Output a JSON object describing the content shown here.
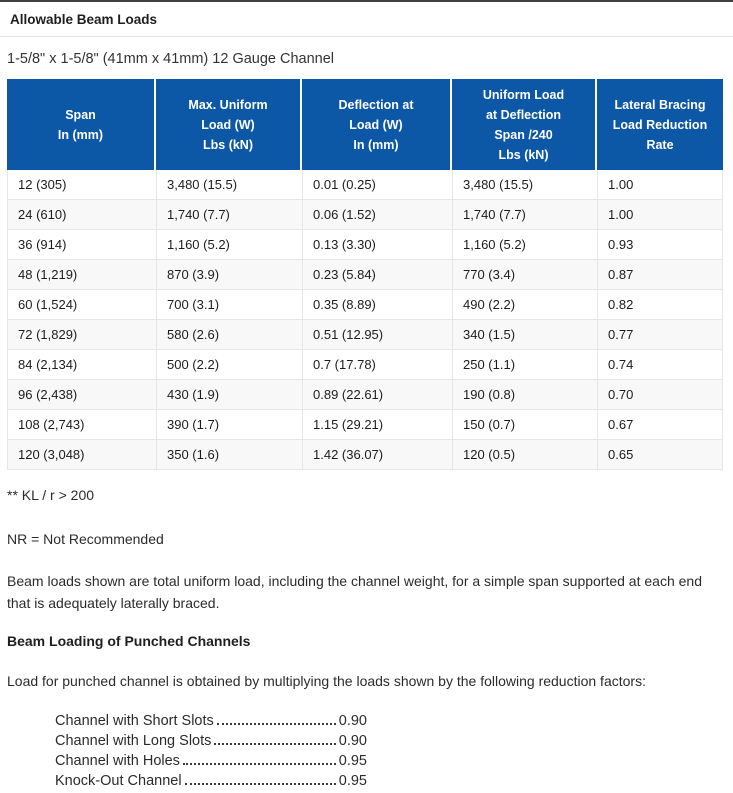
{
  "page": {
    "section_title": "Allowable Beam Loads",
    "subtitle": "1-5/8\" x 1-5/8\" (41mm x 41mm) 12 Gauge Channel"
  },
  "table": {
    "header_bg": "#0d57a7",
    "headers": [
      "Span\nIn (mm)",
      "Max. Uniform\nLoad (W)\nLbs (kN)",
      "Deflection at\nLoad (W)\nIn (mm)",
      "Uniform Load\nat Deflection\nSpan /240\nLbs (kN)",
      "Lateral Bracing\nLoad Reduction\nRate"
    ],
    "rows": [
      [
        "12 (305)",
        "3,480 (15.5)",
        "0.01 (0.25)",
        "3,480 (15.5)",
        "1.00"
      ],
      [
        "24 (610)",
        "1,740 (7.7)",
        "0.06 (1.52)",
        "1,740 (7.7)",
        "1.00"
      ],
      [
        "36 (914)",
        "1,160 (5.2)",
        "0.13 (3.30)",
        "1,160 (5.2)",
        "0.93"
      ],
      [
        "48 (1,219)",
        "870 (3.9)",
        "0.23 (5.84)",
        "770 (3.4)",
        "0.87"
      ],
      [
        "60 (1,524)",
        "700 (3.1)",
        "0.35 (8.89)",
        "490 (2.2)",
        "0.82"
      ],
      [
        "72 (1,829)",
        "580 (2.6)",
        "0.51 (12.95)",
        "340 (1.5)",
        "0.77"
      ],
      [
        "84 (2,134)",
        "500 (2.2)",
        "0.7 (17.78)",
        "250 (1.1)",
        "0.74"
      ],
      [
        "96 (2,438)",
        "430 (1.9)",
        "0.89 (22.61)",
        "190 (0.8)",
        "0.70"
      ],
      [
        "108 (2,743)",
        "390 (1.7)",
        "1.15 (29.21)",
        "150 (0.7)",
        "0.67"
      ],
      [
        "120 (3,048)",
        "350 (1.6)",
        "1.42 (36.07)",
        "120 (0.5)",
        "0.65"
      ]
    ]
  },
  "notes": {
    "kl_note": "** KL / r > 200",
    "nr_note": "NR = Not Recommended",
    "beam_note": "Beam loads shown are total uniform load, including the channel weight, for a simple span supported at each end that is adequately laterally braced."
  },
  "punched": {
    "heading": "Beam Loading of Punched Channels",
    "intro": "Load for punched channel is obtained by multiplying the loads shown by the following reduction factors:",
    "factors": [
      {
        "label": "Channel with Short Slots",
        "value": "0.90"
      },
      {
        "label": "Channel with Long Slots",
        "value": "0.90"
      },
      {
        "label": "Channel with Holes",
        "value": "0.95"
      },
      {
        "label": "Knock-Out Channel",
        "value": "0.95"
      }
    ]
  }
}
